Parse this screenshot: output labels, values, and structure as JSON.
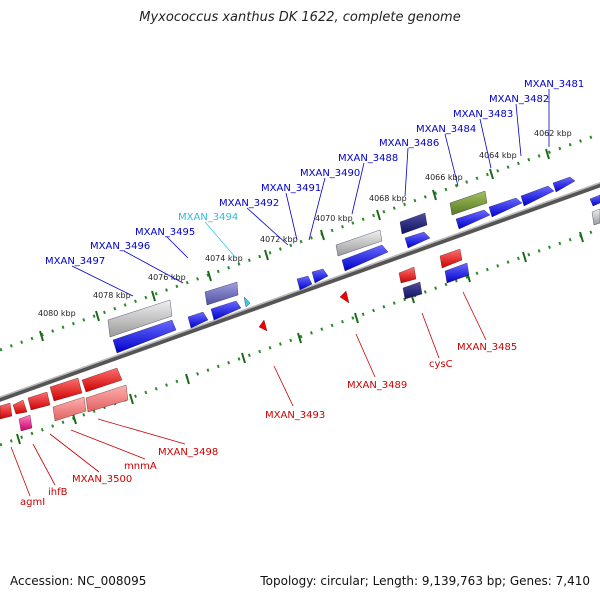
{
  "title": "Myxococcus xanthus DK 1622, complete genome",
  "footer": {
    "accession": "Accession: NC_008095",
    "summary": "Topology: circular; Length: 9,139,763 bp; Genes: 7,410"
  },
  "colors": {
    "forward_strand": "#0000ee",
    "reverse_strand": "#ee0000",
    "highlight": "#33ccee",
    "backbone": "#888888",
    "ruler": "#228822"
  },
  "scale_ticks": [
    "4062 kbp",
    "4064 kbp",
    "4066 kbp",
    "4068 kbp",
    "4070 kbp",
    "4072 kbp",
    "4074 kbp",
    "4076 kbp",
    "4078 kbp",
    "4080 kbp"
  ],
  "genes_top": [
    "MXAN_3481",
    "MXAN_3482",
    "MXAN_3483",
    "MXAN_3484",
    "MXAN_3486",
    "MXAN_3488",
    "MXAN_3490",
    "MXAN_3491",
    "MXAN_3492",
    "MXAN_3494",
    "MXAN_3495",
    "MXAN_3496",
    "MXAN_3497"
  ],
  "genes_bottom": [
    "MXAN_3485",
    "cysC",
    "MXAN_3489",
    "MXAN_3493",
    "MXAN_3498",
    "mnmA",
    "MXAN_3500",
    "ihfB",
    "agmI"
  ]
}
